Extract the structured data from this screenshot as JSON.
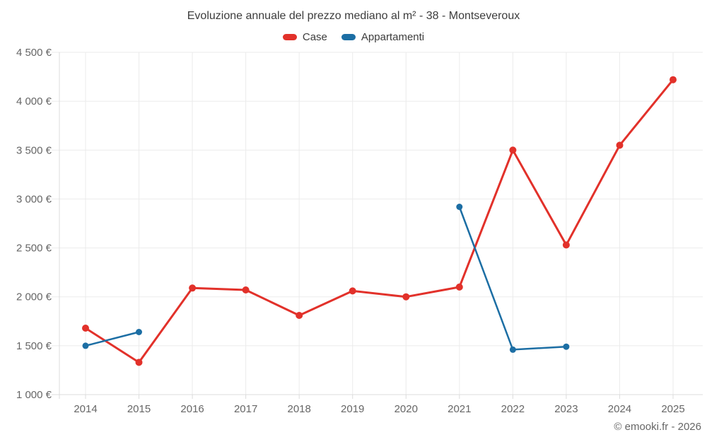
{
  "header": {
    "title": "Evoluzione annuale del prezzo mediano al m² - 38 - Montseveroux"
  },
  "footer": {
    "copyright": "© emooki.fr - 2026"
  },
  "chart_data": {
    "type": "line",
    "title": "Evoluzione annuale del prezzo mediano al m² - 38 - Montseveroux",
    "xlabel": "",
    "ylabel": "",
    "categories": [
      "2014",
      "2015",
      "2016",
      "2017",
      "2018",
      "2019",
      "2020",
      "2021",
      "2022",
      "2023",
      "2024",
      "2025"
    ],
    "series": [
      {
        "name": "Case",
        "color": "#e2312a",
        "values": [
          1680,
          1330,
          2090,
          2070,
          1810,
          2060,
          2000,
          2100,
          3500,
          2530,
          3550,
          4220
        ]
      },
      {
        "name": "Appartamenti",
        "color": "#1c6ea4",
        "values": [
          1500,
          1640,
          null,
          null,
          null,
          null,
          null,
          2920,
          1460,
          1490,
          null,
          null
        ]
      }
    ],
    "ylim": [
      1000,
      4500
    ],
    "ytick_step": 500,
    "ytick_labels": [
      "1 000 €",
      "1 500 €",
      "2 000 €",
      "2 500 €",
      "3 000 €",
      "3 500 €",
      "4 000 €",
      "4 500 €"
    ],
    "grid": true,
    "legend_position": "top",
    "colors": {
      "grid": "#ebebeb",
      "axis": "#dcdcdc",
      "tick_label": "#666666",
      "title": "#3c3c3c"
    }
  }
}
